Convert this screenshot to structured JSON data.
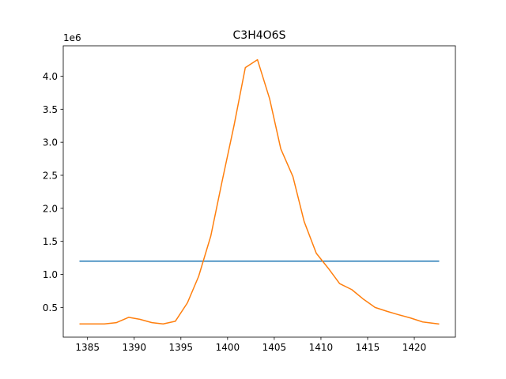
{
  "chart_data": {
    "type": "line",
    "title": "C3H4O6S",
    "y_multiplier": "1e6",
    "xlim": [
      1382.4,
      1424.4
    ],
    "ylim": [
      0.05,
      4.46
    ],
    "xticks": [
      {
        "value": 1385,
        "label": "1385"
      },
      {
        "value": 1390,
        "label": "1390"
      },
      {
        "value": 1395,
        "label": "1395"
      },
      {
        "value": 1400,
        "label": "1400"
      },
      {
        "value": 1405,
        "label": "1405"
      },
      {
        "value": 1410,
        "label": "1410"
      },
      {
        "value": 1415,
        "label": "1415"
      },
      {
        "value": 1420,
        "label": "1420"
      }
    ],
    "yticks": [
      {
        "value": 0.5,
        "label": "0.5"
      },
      {
        "value": 1.0,
        "label": "1.0"
      },
      {
        "value": 1.5,
        "label": "1.5"
      },
      {
        "value": 2.0,
        "label": "2.0"
      },
      {
        "value": 2.5,
        "label": "2.5"
      },
      {
        "value": 3.0,
        "label": "3.0"
      },
      {
        "value": 3.5,
        "label": "3.5"
      },
      {
        "value": 4.0,
        "label": "4.0"
      }
    ],
    "series": [
      {
        "color": "#1f77b4",
        "x": [
          1384.2,
          1422.6
        ],
        "y": [
          1.2,
          1.2
        ]
      },
      {
        "color": "#ff7f0e",
        "x": [
          1384.2,
          1385.5,
          1386.8,
          1388.1,
          1389.4,
          1390.6,
          1391.9,
          1393.1,
          1394.4,
          1395.7,
          1396.9,
          1398.2,
          1399.4,
          1400.7,
          1401.9,
          1403.2,
          1404.5,
          1405.7,
          1407.0,
          1408.2,
          1409.5,
          1410.8,
          1412.0,
          1413.3,
          1414.5,
          1415.8,
          1417.1,
          1418.3,
          1419.6,
          1420.9,
          1422.6
        ],
        "y": [
          0.25,
          0.25,
          0.25,
          0.27,
          0.35,
          0.32,
          0.27,
          0.25,
          0.29,
          0.57,
          0.97,
          1.58,
          2.4,
          3.26,
          4.13,
          4.25,
          3.66,
          2.9,
          2.48,
          1.8,
          1.32,
          1.09,
          0.86,
          0.77,
          0.63,
          0.5,
          0.44,
          0.39,
          0.34,
          0.28,
          0.25
        ]
      }
    ]
  }
}
